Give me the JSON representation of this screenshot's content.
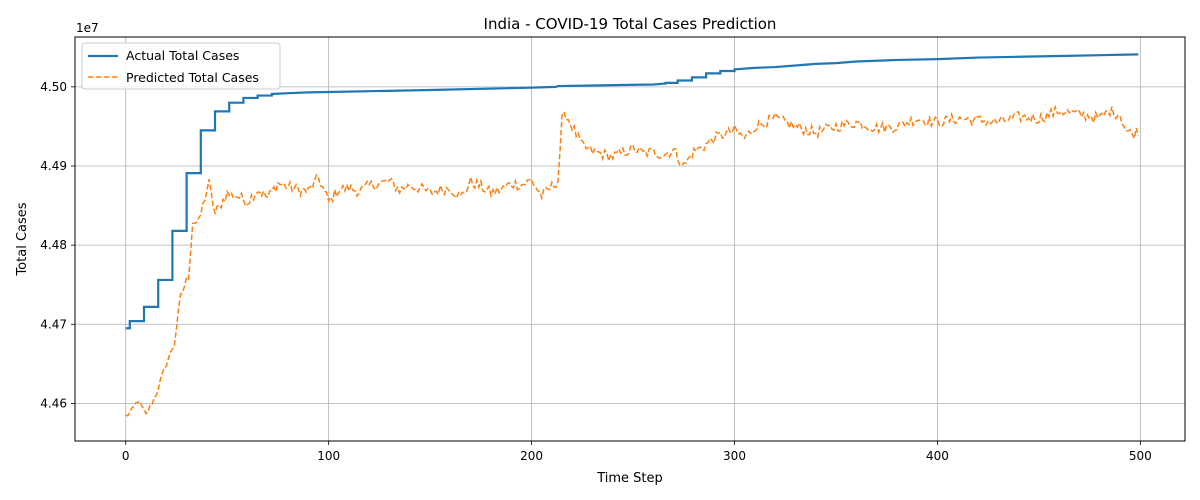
{
  "chart_data": {
    "type": "line",
    "title": "India - COVID-19 Total Cases Prediction",
    "xlabel": "Time Step",
    "ylabel": "Total Cases",
    "y_offset_label": "1e7",
    "xlim": [
      -25,
      522
    ],
    "ylim": [
      44.5525,
      45.063
    ],
    "x_ticks": [
      0,
      100,
      200,
      300,
      400,
      500
    ],
    "x_tick_labels": [
      "0",
      "100",
      "200",
      "300",
      "400",
      "500"
    ],
    "y_ticks": [
      44.6,
      44.7,
      44.8,
      44.9,
      45.0
    ],
    "y_tick_labels": [
      "4.46",
      "4.47",
      "4.48",
      "4.49",
      "4.50"
    ],
    "grid": true,
    "legend_position": "upper-left",
    "series": [
      {
        "name": "Actual Total Cases",
        "color": "#1f77b4",
        "style": "solid",
        "points": [
          [
            0,
            44.695
          ],
          [
            2,
            44.695
          ],
          [
            2,
            44.704
          ],
          [
            9,
            44.704
          ],
          [
            9,
            44.722
          ],
          [
            16,
            44.722
          ],
          [
            16,
            44.756
          ],
          [
            23,
            44.756
          ],
          [
            23,
            44.818
          ],
          [
            30,
            44.818
          ],
          [
            30,
            44.891
          ],
          [
            37,
            44.891
          ],
          [
            37,
            44.945
          ],
          [
            44,
            44.945
          ],
          [
            44,
            44.969
          ],
          [
            51,
            44.969
          ],
          [
            51,
            44.98
          ],
          [
            58,
            44.98
          ],
          [
            58,
            44.986
          ],
          [
            65,
            44.986
          ],
          [
            65,
            44.989
          ],
          [
            72,
            44.989
          ],
          [
            72,
            44.991
          ],
          [
            80,
            44.992
          ],
          [
            90,
            44.993
          ],
          [
            100,
            44.9935
          ],
          [
            150,
            44.996
          ],
          [
            200,
            44.999
          ],
          [
            212,
            45.0
          ],
          [
            213,
            45.001
          ],
          [
            260,
            45.003
          ],
          [
            265,
            45.004
          ],
          [
            266,
            45.004
          ],
          [
            266,
            45.005
          ],
          [
            272,
            45.005
          ],
          [
            272,
            45.008
          ],
          [
            279,
            45.008
          ],
          [
            279,
            45.012
          ],
          [
            286,
            45.012
          ],
          [
            286,
            45.017
          ],
          [
            293,
            45.017
          ],
          [
            293,
            45.02
          ],
          [
            300,
            45.02
          ],
          [
            300,
            45.022
          ],
          [
            310,
            45.024
          ],
          [
            320,
            45.025
          ],
          [
            330,
            45.027
          ],
          [
            340,
            45.029
          ],
          [
            350,
            45.03
          ],
          [
            360,
            45.032
          ],
          [
            380,
            45.034
          ],
          [
            400,
            45.035
          ],
          [
            420,
            45.037
          ],
          [
            440,
            45.038
          ],
          [
            460,
            45.039
          ],
          [
            480,
            45.04
          ],
          [
            499,
            45.041
          ]
        ]
      },
      {
        "name": "Predicted Total Cases",
        "color": "#ff7f0e",
        "style": "dashed",
        "anchors": [
          [
            0,
            44.584
          ],
          [
            3,
            44.59
          ],
          [
            6,
            44.604
          ],
          [
            10,
            44.585
          ],
          [
            15,
            44.612
          ],
          [
            20,
            44.65
          ],
          [
            24,
            44.676
          ],
          [
            27,
            44.735
          ],
          [
            31,
            44.762
          ],
          [
            33,
            44.83
          ],
          [
            36,
            44.828
          ],
          [
            39,
            44.86
          ],
          [
            41,
            44.878
          ],
          [
            44,
            44.84
          ],
          [
            50,
            44.865
          ],
          [
            55,
            44.862
          ],
          [
            60,
            44.855
          ],
          [
            65,
            44.87
          ],
          [
            70,
            44.86
          ],
          [
            75,
            44.878
          ],
          [
            80,
            44.874
          ],
          [
            85,
            44.87
          ],
          [
            90,
            44.868
          ],
          [
            95,
            44.885
          ],
          [
            100,
            44.855
          ],
          [
            105,
            44.87
          ],
          [
            110,
            44.872
          ],
          [
            115,
            44.868
          ],
          [
            120,
            44.875
          ],
          [
            125,
            44.878
          ],
          [
            130,
            44.88
          ],
          [
            135,
            44.87
          ],
          [
            140,
            44.875
          ],
          [
            145,
            44.872
          ],
          [
            150,
            44.866
          ],
          [
            155,
            44.87
          ],
          [
            160,
            44.872
          ],
          [
            165,
            44.86
          ],
          [
            170,
            44.88
          ],
          [
            175,
            44.874
          ],
          [
            180,
            44.866
          ],
          [
            185,
            44.87
          ],
          [
            190,
            44.878
          ],
          [
            195,
            44.876
          ],
          [
            200,
            44.882
          ],
          [
            205,
            44.862
          ],
          [
            210,
            44.874
          ],
          [
            213,
            44.882
          ],
          [
            215,
            44.958
          ],
          [
            217,
            44.965
          ],
          [
            220,
            44.95
          ],
          [
            225,
            44.925
          ],
          [
            230,
            44.918
          ],
          [
            240,
            44.912
          ],
          [
            250,
            44.922
          ],
          [
            255,
            44.916
          ],
          [
            260,
            44.918
          ],
          [
            265,
            44.914
          ],
          [
            270,
            44.92
          ],
          [
            275,
            44.9
          ],
          [
            280,
            44.918
          ],
          [
            285,
            44.925
          ],
          [
            290,
            44.935
          ],
          [
            295,
            44.94
          ],
          [
            300,
            44.945
          ],
          [
            305,
            44.935
          ],
          [
            310,
            44.95
          ],
          [
            315,
            44.955
          ],
          [
            320,
            44.96
          ],
          [
            330,
            44.95
          ],
          [
            340,
            44.942
          ],
          [
            350,
            44.95
          ],
          [
            360,
            44.955
          ],
          [
            370,
            44.948
          ],
          [
            380,
            44.95
          ],
          [
            390,
            44.96
          ],
          [
            400,
            44.955
          ],
          [
            410,
            44.96
          ],
          [
            420,
            44.958
          ],
          [
            430,
            44.955
          ],
          [
            440,
            44.962
          ],
          [
            450,
            44.96
          ],
          [
            460,
            44.97
          ],
          [
            470,
            44.965
          ],
          [
            480,
            44.96
          ],
          [
            485,
            44.97
          ],
          [
            490,
            44.965
          ],
          [
            493,
            44.945
          ],
          [
            496,
            44.94
          ],
          [
            499,
            44.945
          ]
        ],
        "noise_amplitude": 0.007
      }
    ]
  }
}
